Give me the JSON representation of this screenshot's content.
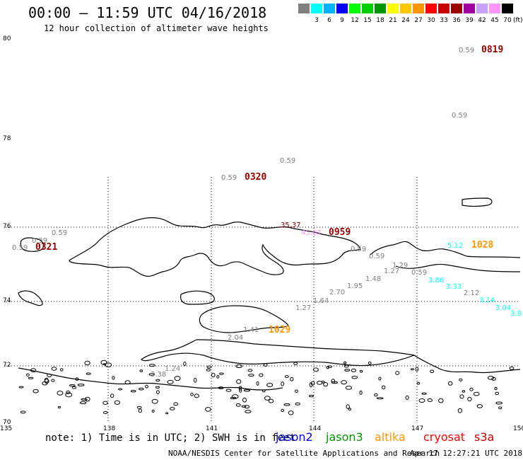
{
  "header": {
    "title": "00:00 – 11:59 UTC 04/16/2018",
    "subtitle": "12 hour collection of altimeter wave heights"
  },
  "legend": {
    "unit": "(ft)",
    "swatches": [
      {
        "color": "#808080",
        "label": ""
      },
      {
        "color": "#00ffff",
        "label": "3"
      },
      {
        "color": "#00b4ff",
        "label": "6"
      },
      {
        "color": "#0000ff",
        "label": "9"
      },
      {
        "color": "#00ff00",
        "label": "12"
      },
      {
        "color": "#00d000",
        "label": "15"
      },
      {
        "color": "#009600",
        "label": "18"
      },
      {
        "color": "#ffff00",
        "label": "21"
      },
      {
        "color": "#ffc800",
        "label": "24"
      },
      {
        "color": "#ff9600",
        "label": "27"
      },
      {
        "color": "#ff0000",
        "label": "30"
      },
      {
        "color": "#c80000",
        "label": "33"
      },
      {
        "color": "#960000",
        "label": "36"
      },
      {
        "color": "#a000a0",
        "label": "39"
      },
      {
        "color": "#c8a0ff",
        "label": "42"
      },
      {
        "color": "#ff96ff",
        "label": "45"
      },
      {
        "color": "#000000",
        "label": "70"
      }
    ]
  },
  "map": {
    "lat_labels": [
      "80",
      "78",
      "76",
      "74",
      "72",
      "70"
    ],
    "lon_labels": [
      "135",
      "138",
      "141",
      "144",
      "147",
      "150"
    ],
    "wave_values": [
      {
        "text": "0.59",
        "color": "#808080"
      },
      {
        "text": "0.59",
        "color": "#808080"
      },
      {
        "text": "0.59",
        "color": "#808080"
      },
      {
        "text": "0.59",
        "color": "#808080"
      },
      {
        "text": "0.59",
        "color": "#808080"
      },
      {
        "text": "0.59",
        "color": "#808080"
      },
      {
        "text": "0.59",
        "color": "#808080"
      },
      {
        "text": "0.59",
        "color": "#808080"
      },
      {
        "text": "0.59",
        "color": "#808080"
      },
      {
        "text": "0.59",
        "color": "#808080"
      },
      {
        "text": "35.37",
        "color": "#960000"
      },
      {
        "text": "45.07",
        "color": "#ff96ff"
      },
      {
        "text": "1.27",
        "color": "#808080"
      },
      {
        "text": "1.29",
        "color": "#808080"
      },
      {
        "text": "1.48",
        "color": "#808080"
      },
      {
        "text": "1.95",
        "color": "#808080"
      },
      {
        "text": "2.70",
        "color": "#808080"
      },
      {
        "text": "1.64",
        "color": "#808080"
      },
      {
        "text": "1.27",
        "color": "#808080"
      },
      {
        "text": "1.41",
        "color": "#808080"
      },
      {
        "text": "2.04",
        "color": "#808080"
      },
      {
        "text": "1.24",
        "color": "#808080"
      },
      {
        "text": "2.38",
        "color": "#808080"
      },
      {
        "text": "5.12",
        "color": "#00ffff"
      },
      {
        "text": "3.86",
        "color": "#00ffff"
      },
      {
        "text": "3.33",
        "color": "#00ffff"
      },
      {
        "text": "2.12",
        "color": "#808080"
      },
      {
        "text": "3.14",
        "color": "#00ffff"
      },
      {
        "text": "3.04",
        "color": "#00ffff"
      },
      {
        "text": "3.8",
        "color": "#00ffff"
      }
    ],
    "pass_times": [
      {
        "text": "0819",
        "color": "#960000"
      },
      {
        "text": "0320",
        "color": "#960000"
      },
      {
        "text": "0959",
        "color": "#960000"
      },
      {
        "text": "0321",
        "color": "#960000"
      },
      {
        "text": "1028",
        "color": "#ff9600"
      },
      {
        "text": "1029",
        "color": "#ff9600"
      }
    ]
  },
  "footer": {
    "note": "note: 1) Time is in UTC; 2) SWH is in feet",
    "satellites": [
      {
        "name": "jason2",
        "color": "#0000ff"
      },
      {
        "name": "jason3",
        "color": "#009600"
      },
      {
        "name": "altika",
        "color": "#ff9600"
      },
      {
        "name": "cryosat",
        "color": "#ff0000"
      },
      {
        "name": "s3a",
        "color": "#c80000"
      }
    ],
    "credit": "NOAA/NESDIS Center for Satellite Applications and Research",
    "timestamp": "Apr 17 12:27:21 UTC 2018"
  }
}
